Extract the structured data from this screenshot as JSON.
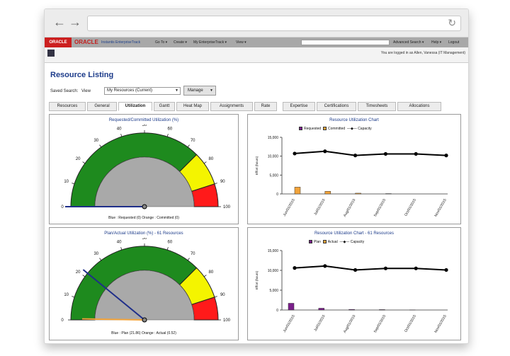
{
  "browser": {
    "back_icon": "arrow-left-icon",
    "forward_icon": "arrow-right-icon",
    "reload_icon": "reload-icon",
    "url": ""
  },
  "app": {
    "logo_badge": "ORACLE",
    "logo_text": "ORACLE",
    "product": "Instantis EnterpriseTrack",
    "menus": [
      "Go To ▾",
      "Create ▾",
      "My EnterpriseTrack ▾",
      "View ▾"
    ],
    "search_links": [
      "Advanced Search ▾",
      "Help ▾",
      "Logout"
    ],
    "logged_in": "You are logged in as Allen, Vanessa (IT Management)"
  },
  "page": {
    "title": "Resource Listing",
    "saved_search_label": "Saved Search:",
    "view_label": "View",
    "view_value": "My Resources (Current)",
    "manage_label": "Manage"
  },
  "tabs": [
    "Resources",
    "General",
    "Utilization",
    "Gantt",
    "Heat Map",
    "Assignments",
    "Rate",
    "Expertise",
    "Certifications",
    "Timesheets",
    "Allocations"
  ],
  "active_tab": "Utilization",
  "gauges": [
    {
      "title": "Requested/Committed Utilization (%)",
      "caption": "Blue : Requested (0) Orange : Committed (0)",
      "blue_value": 0,
      "orange_value": 0,
      "ticks": [
        "0",
        "10",
        "20",
        "30",
        "40",
        "50",
        "60",
        "70",
        "80",
        "90",
        "100"
      ],
      "colors": {
        "green": "#1e8a1e",
        "yellow": "#f4f400",
        "red": "#ff1a1a",
        "inner": "#a9a9a9"
      }
    },
    {
      "title": "Plan/Actual Utilization (%)   - 61 Resources",
      "caption": "Blue : Plan (21.86) Orange : Actual (0.52)",
      "blue_value": 21.86,
      "orange_value": 0.52,
      "ticks": [
        "0",
        "10",
        "20",
        "30",
        "40",
        "50",
        "60",
        "70",
        "80",
        "90",
        "100"
      ],
      "colors": {
        "green": "#1e8a1e",
        "yellow": "#f4f400",
        "red": "#ff1a1a",
        "inner": "#a9a9a9"
      }
    }
  ],
  "chart_data": [
    {
      "type": "bar",
      "title": "Resource Utilization Chart",
      "ylabel": "Effort (hours)",
      "ylim": [
        0,
        15000
      ],
      "yticks": [
        "0",
        "5,000",
        "10,000",
        "15,000"
      ],
      "categories": [
        "Jun/01/2015",
        "Jul/01/2015",
        "Aug/01/2015",
        "Sep/01/2015",
        "Oct/01/2015",
        "Nov/01/2015"
      ],
      "series": [
        {
          "name": "Requested",
          "kind": "bar",
          "color": "#7a1f8a",
          "values": [
            0,
            0,
            0,
            0,
            0,
            0
          ]
        },
        {
          "name": "Committed",
          "kind": "bar",
          "color": "#f2a33a",
          "values": [
            1800,
            700,
            200,
            80,
            0,
            0
          ]
        },
        {
          "name": "Capacity",
          "kind": "line",
          "color": "#000000",
          "values": [
            10700,
            11300,
            10200,
            10600,
            10600,
            10200
          ]
        }
      ]
    },
    {
      "type": "bar",
      "title": "Resource Utilization Chart   - 61 Resources",
      "ylabel": "Effort (hours)",
      "ylim": [
        0,
        15000
      ],
      "yticks": [
        "0",
        "5,000",
        "10,000",
        "15,000"
      ],
      "categories": [
        "Jun/01/2015",
        "Jul/01/2015",
        "Aug/01/2015",
        "Sep/01/2015",
        "Oct/01/2015",
        "Nov/01/2015"
      ],
      "series": [
        {
          "name": "Plan",
          "kind": "bar",
          "color": "#7a1f8a",
          "values": [
            1700,
            450,
            150,
            100,
            30,
            0
          ]
        },
        {
          "name": "Actual",
          "kind": "bar",
          "color": "#f2a33a",
          "values": [
            0,
            0,
            0,
            0,
            0,
            0
          ]
        },
        {
          "name": "Capacity",
          "kind": "line",
          "color": "#000000",
          "values": [
            10600,
            11100,
            10100,
            10500,
            10500,
            10100
          ]
        }
      ]
    }
  ]
}
